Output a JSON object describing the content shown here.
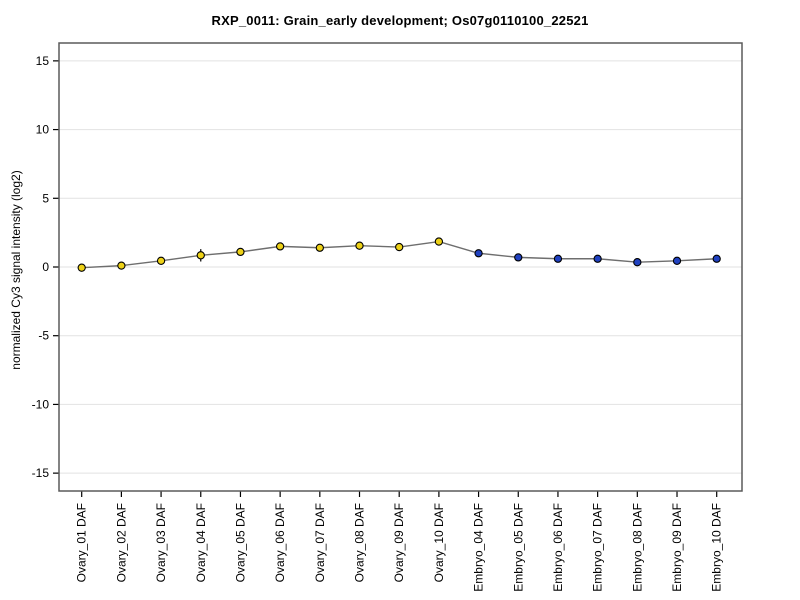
{
  "figure": {
    "title": "RXP_0011: Grain_early development; Os07g0110100_22521"
  },
  "chart_data": {
    "type": "line",
    "title": "RXP_0011: Grain_early development; Os07g0110100_22521",
    "xlabel": "",
    "ylabel": "normalized Cy3 signal intensity (log2)",
    "categories": [
      "Ovary_01 DAF",
      "Ovary_02 DAF",
      "Ovary_03 DAF",
      "Ovary_04 DAF",
      "Ovary_05 DAF",
      "Ovary_06 DAF",
      "Ovary_07 DAF",
      "Ovary_08 DAF",
      "Ovary_09 DAF",
      "Ovary_10 DAF",
      "Embryo_04 DAF",
      "Embryo_05 DAF",
      "Embryo_06 DAF",
      "Embryo_07 DAF",
      "Embryo_08 DAF",
      "Embryo_09 DAF",
      "Embryo_10 DAF"
    ],
    "values": [
      -0.05,
      0.1,
      0.45,
      0.85,
      1.1,
      1.5,
      1.4,
      1.55,
      1.45,
      1.85,
      1.0,
      0.7,
      0.6,
      0.6,
      0.35,
      0.45,
      0.6
    ],
    "error_bars": [
      {
        "category": "Ovary_04 DAF",
        "index": 3,
        "plus_minus": 0.45
      }
    ],
    "groups": [
      {
        "name": "Ovary",
        "marker_color": "#EDD117",
        "first_index": 0,
        "last_index": 9
      },
      {
        "name": "Embryo",
        "marker_color": "#2041C0",
        "first_index": 10,
        "last_index": 16
      }
    ],
    "yticks": [
      15,
      10,
      5,
      0,
      -5,
      -10,
      -15
    ],
    "ylim": [
      -16.3,
      16.3
    ],
    "grid": true,
    "legend": "none",
    "colors": {
      "line": "#6e6e6e",
      "marker_outline": "#000000",
      "gridline": "#e2e2e2",
      "frame": "#5a5a5a",
      "tick": "#000000",
      "background": "#ffffff"
    }
  }
}
